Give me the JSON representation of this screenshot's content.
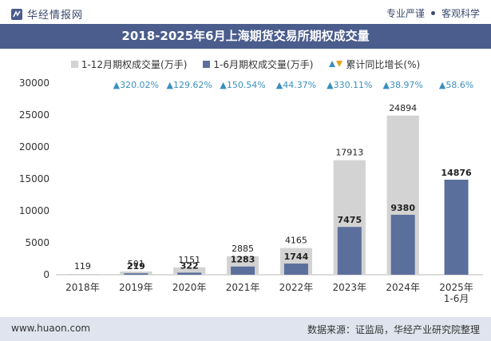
{
  "header": {
    "brand": "华经情报网",
    "tag1": "专业严谨",
    "tag2": "客观科学"
  },
  "title": "2018-2025年6月上海期货交易所期权成交量",
  "legend": {
    "total": "1-12月期权成交量(万手)",
    "h1": "1-6月期权成交量(万手)",
    "growth": "累计同比增长(%)"
  },
  "footer": {
    "website": "www.huaon.com",
    "source": "数据来源：证监局，华经产业研究院整理"
  },
  "colors": {
    "total_bar": "#d3d3d3",
    "h1_bar": "#5b6f9c",
    "growth_up": "#3a8fbf",
    "growth_down": "#e9a319",
    "title_bg": "#4a5d8c"
  },
  "chart_data": {
    "type": "bar",
    "categories": [
      "2018年",
      "2019年",
      "2020年",
      "2021年",
      "2022年",
      "2023年",
      "2024年",
      "2025年\n1-6月"
    ],
    "series": [
      {
        "name": "1-12月期权成交量(万手)",
        "values": [
          119,
          501,
          1151,
          2885,
          4165,
          17913,
          24894,
          null
        ]
      },
      {
        "name": "1-6月期权成交量(万手)",
        "values": [
          null,
          219,
          322,
          1283,
          1744,
          7475,
          9380,
          14876
        ]
      }
    ],
    "growth": {
      "name": "累计同比增长(%)",
      "labels": [
        null,
        "▲320.02%",
        "▲129.62%",
        "▲150.54%",
        "▲44.37%",
        "▲330.11%",
        "▲38.97%",
        "▲58.6%"
      ]
    },
    "ylim": [
      0,
      30000
    ],
    "yticks": [
      0,
      5000,
      10000,
      15000,
      20000,
      25000,
      30000
    ],
    "legend_position": "top"
  }
}
